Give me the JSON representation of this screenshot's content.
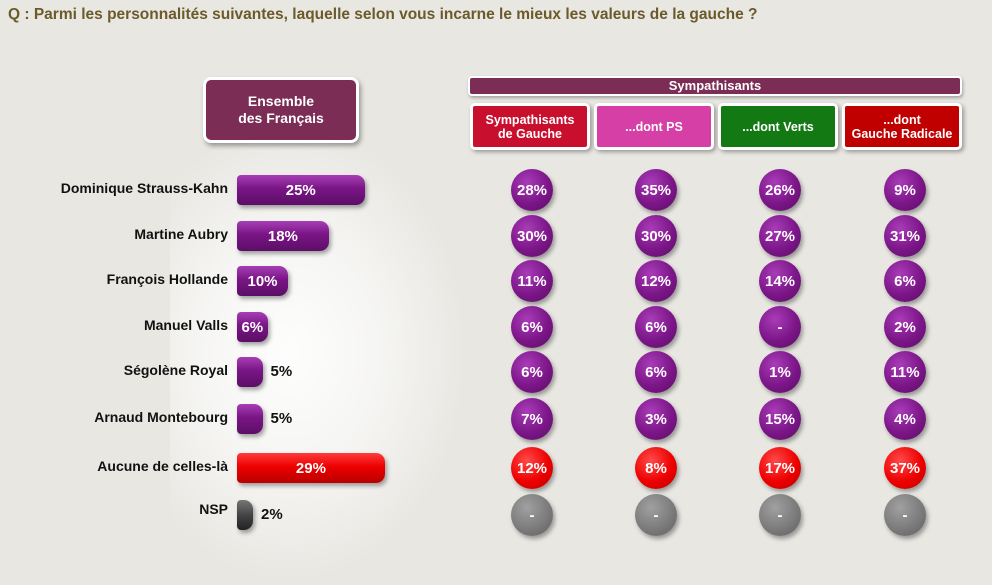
{
  "question": "Q : Parmi les personnalités suivantes, laquelle selon vous incarne le mieux les valeurs de la gauche  ?",
  "ensemble_label": "Ensemble\ndes Français",
  "sympathisants_label": "Sympathisants",
  "colors": {
    "purple": "#7a1586",
    "red": "#ee0000",
    "grey": "#7c7c7c",
    "ensemble_header": "#7b2d55"
  },
  "segments": [
    {
      "label": "Sympathisants\nde Gauche",
      "color": "#c8102e"
    },
    {
      "label": "...dont PS",
      "color": "#d63fa6"
    },
    {
      "label": "...dont Verts",
      "color": "#137a13"
    },
    {
      "label": "...dont\nGauche Radicale",
      "color": "#c00000"
    }
  ],
  "chart_data": {
    "type": "bar",
    "title": "Q : Parmi les personnalités suivantes, laquelle selon vous incarne le mieux les valeurs de la gauche  ?",
    "categories": [
      "Dominique Strauss-Kahn",
      "Martine Aubry",
      "François Hollande",
      "Manuel Valls",
      "Ségolène Royal",
      "Arnaud Montebourg",
      "Aucune de celles-là",
      "NSP"
    ],
    "series": [
      {
        "name": "Ensemble des Français",
        "values": [
          25,
          18,
          10,
          6,
          5,
          5,
          29,
          2
        ],
        "labels": [
          "25%",
          "18%",
          "10%",
          "6%",
          "5%",
          "5%",
          "29%",
          "2%"
        ]
      },
      {
        "name": "Sympathisants de Gauche",
        "values": [
          28,
          30,
          11,
          6,
          6,
          7,
          12,
          null
        ],
        "labels": [
          "28%",
          "30%",
          "11%",
          "6%",
          "6%",
          "7%",
          "12%",
          "-"
        ]
      },
      {
        "name": "...dont PS",
        "values": [
          35,
          30,
          12,
          6,
          6,
          3,
          8,
          null
        ],
        "labels": [
          "35%",
          "30%",
          "12%",
          "6%",
          "6%",
          "3%",
          "8%",
          "-"
        ]
      },
      {
        "name": "...dont Verts",
        "values": [
          26,
          27,
          14,
          null,
          1,
          15,
          17,
          null
        ],
        "labels": [
          "26%",
          "27%",
          "14%",
          "-",
          "1%",
          "15%",
          "17%",
          "-"
        ]
      },
      {
        "name": "...dont Gauche Radicale",
        "values": [
          9,
          31,
          6,
          2,
          11,
          4,
          37,
          null
        ],
        "labels": [
          "9%",
          "31%",
          "6%",
          "2%",
          "11%",
          "4%",
          "37%",
          "-"
        ]
      }
    ],
    "row_styles": [
      "purple",
      "purple",
      "purple",
      "purple",
      "purple",
      "purple",
      "red",
      "grey"
    ]
  }
}
